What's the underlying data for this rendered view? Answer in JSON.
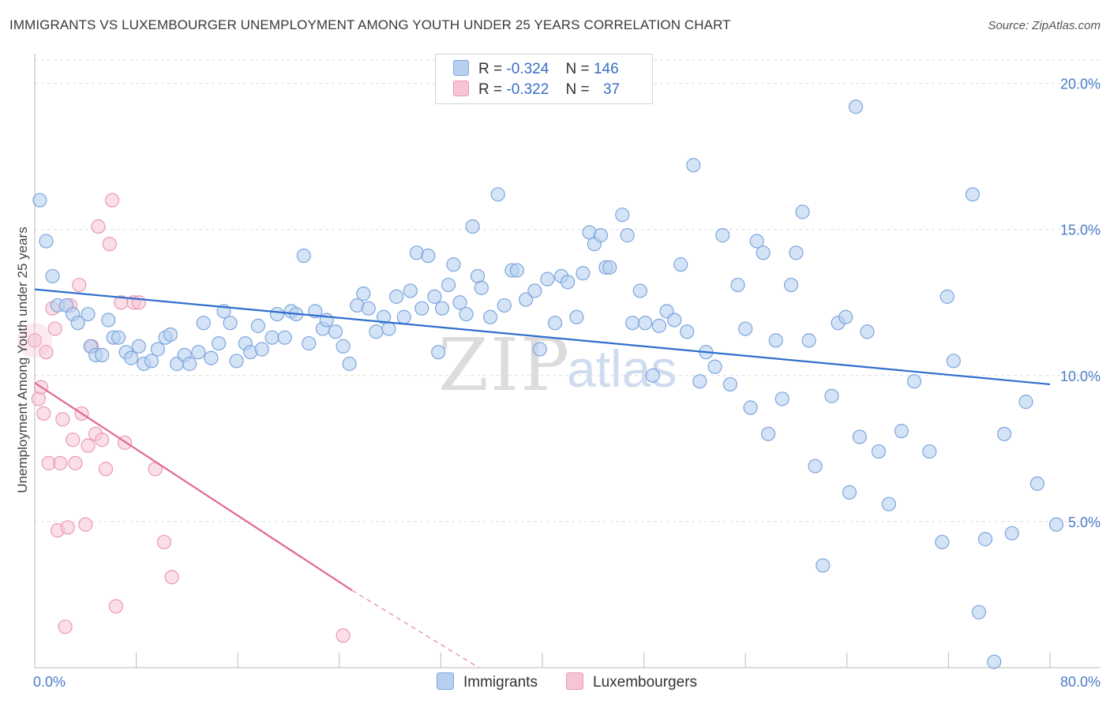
{
  "header": {
    "title": "IMMIGRANTS VS LUXEMBOURGER UNEMPLOYMENT AMONG YOUTH UNDER 25 YEARS CORRELATION CHART",
    "source": "Source: ZipAtlas.com"
  },
  "watermark": {
    "zip": "ZIP",
    "atlas": "atlas"
  },
  "legend": {
    "rows": [
      {
        "r_label": "R =",
        "r_value": "-0.324",
        "n_label": "N =",
        "n_value": "146"
      },
      {
        "r_label": "R =",
        "r_value": "-0.322",
        "n_label": "N =",
        "n_value": "37"
      }
    ]
  },
  "chart_data": {
    "type": "scatter",
    "title": "IMMIGRANTS VS LUXEMBOURGER UNEMPLOYMENT AMONG YOUTH UNDER 25 YEARS CORRELATION CHART",
    "ylabel": "Unemployment Among Youth under 25 years",
    "xlabel": "",
    "xlim": [
      0,
      80
    ],
    "ylim": [
      0,
      20.8
    ],
    "x_tick_labels": [
      "0.0%",
      "80.0%"
    ],
    "y_ticks": [
      5,
      10,
      15,
      20
    ],
    "y_tick_labels": [
      "5.0%",
      "10.0%",
      "15.0%",
      "20.0%"
    ],
    "grid": true,
    "legend_position": "top-center",
    "colors": {
      "immigrants_fill": "#b8d0f0",
      "immigrants_stroke": "#7ea6dc",
      "immigrants_line": "#2f6fcc",
      "lux_fill": "#f7c4d4",
      "lux_stroke": "#e89ab4",
      "lux_line": "#e0689a",
      "tick_color": "#4a7cc7"
    },
    "series": [
      {
        "name": "Immigrants",
        "trend": {
          "x": [
            0,
            80
          ],
          "y": [
            12.95,
            9.7
          ]
        },
        "points": [
          [
            0.4,
            16.0
          ],
          [
            0.9,
            14.6
          ],
          [
            1.4,
            13.4
          ],
          [
            1.8,
            12.4
          ],
          [
            2.5,
            12.4
          ],
          [
            3.0,
            12.1
          ],
          [
            3.4,
            11.8
          ],
          [
            4.2,
            12.1
          ],
          [
            4.4,
            11.0
          ],
          [
            4.8,
            10.7
          ],
          [
            5.3,
            10.7
          ],
          [
            5.8,
            11.9
          ],
          [
            6.2,
            11.3
          ],
          [
            6.6,
            11.3
          ],
          [
            7.2,
            10.8
          ],
          [
            7.6,
            10.6
          ],
          [
            8.2,
            11.0
          ],
          [
            8.6,
            10.4
          ],
          [
            9.2,
            10.5
          ],
          [
            9.7,
            10.9
          ],
          [
            10.3,
            11.3
          ],
          [
            10.7,
            11.4
          ],
          [
            11.2,
            10.4
          ],
          [
            11.8,
            10.7
          ],
          [
            12.2,
            10.4
          ],
          [
            12.9,
            10.8
          ],
          [
            13.3,
            11.8
          ],
          [
            13.9,
            10.6
          ],
          [
            14.5,
            11.1
          ],
          [
            14.9,
            12.2
          ],
          [
            15.4,
            11.8
          ],
          [
            15.9,
            10.5
          ],
          [
            16.6,
            11.1
          ],
          [
            17.0,
            10.8
          ],
          [
            17.6,
            11.7
          ],
          [
            17.9,
            10.9
          ],
          [
            18.7,
            11.3
          ],
          [
            19.1,
            12.1
          ],
          [
            19.7,
            11.3
          ],
          [
            20.2,
            12.2
          ],
          [
            20.6,
            12.1
          ],
          [
            21.2,
            14.1
          ],
          [
            21.6,
            11.1
          ],
          [
            22.1,
            12.2
          ],
          [
            22.7,
            11.6
          ],
          [
            23.0,
            11.9
          ],
          [
            23.7,
            11.5
          ],
          [
            24.3,
            11.0
          ],
          [
            24.8,
            10.4
          ],
          [
            25.4,
            12.4
          ],
          [
            25.9,
            12.8
          ],
          [
            26.3,
            12.3
          ],
          [
            26.9,
            11.5
          ],
          [
            27.5,
            12.0
          ],
          [
            27.9,
            11.6
          ],
          [
            28.5,
            12.7
          ],
          [
            29.1,
            12.0
          ],
          [
            29.6,
            12.9
          ],
          [
            30.1,
            14.2
          ],
          [
            30.5,
            12.3
          ],
          [
            31.0,
            14.1
          ],
          [
            31.5,
            12.7
          ],
          [
            31.8,
            10.8
          ],
          [
            32.1,
            12.3
          ],
          [
            32.6,
            13.1
          ],
          [
            33.0,
            13.8
          ],
          [
            33.5,
            12.5
          ],
          [
            34.0,
            12.1
          ],
          [
            34.5,
            15.1
          ],
          [
            34.9,
            13.4
          ],
          [
            35.2,
            13.0
          ],
          [
            35.9,
            12.0
          ],
          [
            36.5,
            16.2
          ],
          [
            37.0,
            12.4
          ],
          [
            37.6,
            13.6
          ],
          [
            38.0,
            13.6
          ],
          [
            38.7,
            12.6
          ],
          [
            39.4,
            12.9
          ],
          [
            39.8,
            10.9
          ],
          [
            40.4,
            13.3
          ],
          [
            41.0,
            11.8
          ],
          [
            41.5,
            13.4
          ],
          [
            42.0,
            13.2
          ],
          [
            42.7,
            12.0
          ],
          [
            43.2,
            13.5
          ],
          [
            43.7,
            14.9
          ],
          [
            44.1,
            14.5
          ],
          [
            44.6,
            14.8
          ],
          [
            45.0,
            13.7
          ],
          [
            45.3,
            13.7
          ],
          [
            46.3,
            15.5
          ],
          [
            46.7,
            14.8
          ],
          [
            47.1,
            11.8
          ],
          [
            47.7,
            12.9
          ],
          [
            48.1,
            11.8
          ],
          [
            48.7,
            10.0
          ],
          [
            49.2,
            11.7
          ],
          [
            49.8,
            12.2
          ],
          [
            50.4,
            11.9
          ],
          [
            50.9,
            13.8
          ],
          [
            51.4,
            11.5
          ],
          [
            51.9,
            17.2
          ],
          [
            52.4,
            9.8
          ],
          [
            52.9,
            10.8
          ],
          [
            53.6,
            10.3
          ],
          [
            54.2,
            14.8
          ],
          [
            54.8,
            9.7
          ],
          [
            55.4,
            13.1
          ],
          [
            56.0,
            11.6
          ],
          [
            56.4,
            8.9
          ],
          [
            56.9,
            14.6
          ],
          [
            57.4,
            14.2
          ],
          [
            57.8,
            8.0
          ],
          [
            58.4,
            11.2
          ],
          [
            58.9,
            9.2
          ],
          [
            59.6,
            13.1
          ],
          [
            60.0,
            14.2
          ],
          [
            60.5,
            15.6
          ],
          [
            61.0,
            11.2
          ],
          [
            61.5,
            6.9
          ],
          [
            62.1,
            3.5
          ],
          [
            62.8,
            9.3
          ],
          [
            63.3,
            11.8
          ],
          [
            63.9,
            12.0
          ],
          [
            64.2,
            6.0
          ],
          [
            64.7,
            19.2
          ],
          [
            65.0,
            7.9
          ],
          [
            65.6,
            11.5
          ],
          [
            66.5,
            7.4
          ],
          [
            67.3,
            5.6
          ],
          [
            68.3,
            8.1
          ],
          [
            69.3,
            9.8
          ],
          [
            70.5,
            7.4
          ],
          [
            71.5,
            4.3
          ],
          [
            71.9,
            12.7
          ],
          [
            72.4,
            10.5
          ],
          [
            73.9,
            16.2
          ],
          [
            74.4,
            1.9
          ],
          [
            74.9,
            4.4
          ],
          [
            75.6,
            0.2
          ],
          [
            76.4,
            8.0
          ],
          [
            77.0,
            4.6
          ],
          [
            78.1,
            9.1
          ],
          [
            79.0,
            6.3
          ],
          [
            80.5,
            4.9
          ]
        ]
      },
      {
        "name": "Luxembourgers",
        "trend": {
          "x": [
            0,
            25
          ],
          "y": [
            9.75,
            2.65
          ],
          "dash_to": [
            35,
            0
          ]
        },
        "points": [
          [
            0.0,
            11.2
          ],
          [
            0.3,
            9.2
          ],
          [
            0.5,
            9.6
          ],
          [
            0.7,
            8.7
          ],
          [
            0.9,
            10.8
          ],
          [
            1.1,
            7.0
          ],
          [
            1.4,
            12.3
          ],
          [
            1.6,
            11.6
          ],
          [
            1.8,
            4.7
          ],
          [
            2.0,
            7.0
          ],
          [
            2.2,
            8.5
          ],
          [
            2.4,
            1.4
          ],
          [
            2.6,
            4.8
          ],
          [
            2.8,
            12.4
          ],
          [
            3.0,
            7.8
          ],
          [
            3.2,
            7.0
          ],
          [
            3.5,
            13.1
          ],
          [
            3.7,
            8.7
          ],
          [
            4.0,
            4.9
          ],
          [
            4.2,
            7.6
          ],
          [
            4.5,
            11.0
          ],
          [
            4.8,
            8.0
          ],
          [
            5.0,
            15.1
          ],
          [
            5.3,
            7.8
          ],
          [
            5.6,
            6.8
          ],
          [
            5.9,
            14.5
          ],
          [
            6.1,
            16.0
          ],
          [
            6.4,
            2.1
          ],
          [
            6.8,
            12.5
          ],
          [
            7.1,
            7.7
          ],
          [
            7.8,
            12.5
          ],
          [
            8.2,
            12.5
          ],
          [
            9.5,
            6.8
          ],
          [
            10.2,
            4.3
          ],
          [
            10.8,
            3.1
          ],
          [
            24.3,
            1.1
          ]
        ]
      }
    ]
  },
  "bottom_legend": {
    "immigrants": "Immigrants",
    "luxembourgers": "Luxembourgers"
  }
}
